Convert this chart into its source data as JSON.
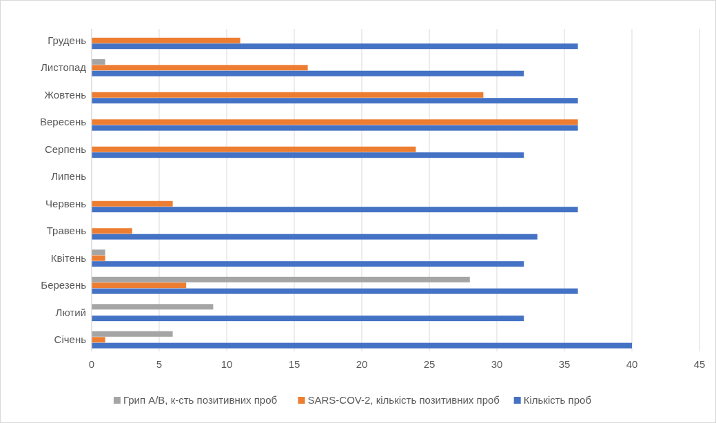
{
  "chart_data": {
    "type": "bar",
    "orientation": "horizontal",
    "categories": [
      "Грудень",
      "Листопад",
      "Жовтень",
      "Вересень",
      "Серпень",
      "Липень",
      "Червень",
      "Травень",
      "Квітень",
      "Березень",
      "Лютий",
      "Січень"
    ],
    "series": [
      {
        "name": "Грип А/В, к-сть позитивних проб",
        "color": "#a5a5a5",
        "values": [
          0,
          1,
          0,
          0,
          0,
          0,
          0,
          0,
          1,
          28,
          9,
          6
        ]
      },
      {
        "name": "SARS-COV-2, кількість позитивних проб",
        "color": "#ed7d31",
        "values": [
          11,
          16,
          29,
          36,
          24,
          0,
          6,
          3,
          1,
          7,
          0,
          1
        ]
      },
      {
        "name": "Кількість проб",
        "color": "#4472c4",
        "values": [
          36,
          32,
          36,
          36,
          32,
          0,
          36,
          33,
          32,
          36,
          32,
          40
        ]
      }
    ],
    "xlim": [
      0,
      45
    ],
    "xticks": [
      0,
      5,
      10,
      15,
      20,
      25,
      30,
      35,
      40,
      45
    ],
    "grid": "x",
    "legend": "bottom"
  }
}
